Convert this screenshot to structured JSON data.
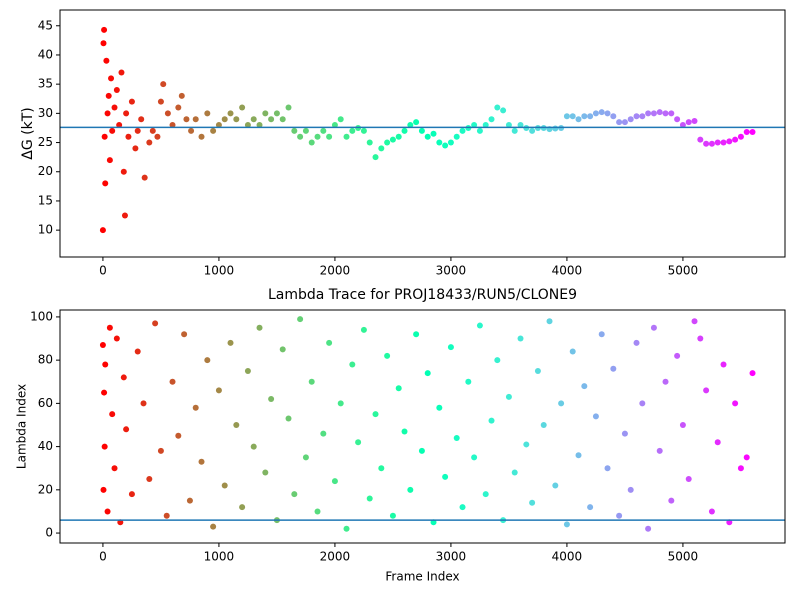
{
  "chart_data": [
    {
      "type": "scatter",
      "ylabel": "ΔG (kT)",
      "colormap": "rainbow_r",
      "x": [
        0,
        10,
        5,
        20,
        15,
        30,
        40,
        50,
        60,
        70,
        80,
        100,
        120,
        140,
        160,
        180,
        190,
        200,
        220,
        250,
        280,
        300,
        330,
        360,
        400,
        430,
        470,
        500,
        520,
        560,
        600,
        650,
        680,
        720,
        760,
        800,
        850,
        900,
        950,
        1000,
        1050,
        1100,
        1150,
        1200,
        1250,
        1300,
        1350,
        1400,
        1450,
        1500,
        1550,
        1600,
        1650,
        1700,
        1750,
        1800,
        1850,
        1900,
        1950,
        2000,
        2050,
        2100,
        2150,
        2200,
        2250,
        2300,
        2350,
        2400,
        2450,
        2500,
        2550,
        2600,
        2650,
        2700,
        2750,
        2800,
        2850,
        2900,
        2950,
        3000,
        3050,
        3100,
        3150,
        3200,
        3250,
        3300,
        3350,
        3400,
        3450,
        3500,
        3550,
        3600,
        3650,
        3700,
        3750,
        3800,
        3850,
        3900,
        3950,
        4000,
        4050,
        4100,
        4150,
        4200,
        4250,
        4300,
        4350,
        4400,
        4450,
        4500,
        4550,
        4600,
        4650,
        4700,
        4750,
        4800,
        4850,
        4900,
        4950,
        5000,
        5050,
        5100,
        5150,
        5200,
        5250,
        5300,
        5350,
        5400,
        5450,
        5500,
        5550,
        5600
      ],
      "values": [
        10,
        44.3,
        42,
        18,
        26,
        39,
        30,
        33,
        22,
        36,
        27,
        31,
        34,
        28,
        37,
        20,
        12.5,
        30,
        26,
        32,
        24,
        27,
        29,
        19,
        25,
        27,
        26,
        32,
        35,
        30,
        28,
        31,
        33,
        29,
        27,
        29,
        26,
        30,
        27,
        28,
        29,
        30,
        29,
        31,
        28,
        29,
        28,
        30,
        29,
        30,
        29,
        31,
        27,
        26,
        27,
        25,
        26,
        27,
        26,
        28,
        29,
        26,
        27,
        27.5,
        27,
        25,
        22.5,
        24,
        25,
        25.5,
        26,
        27,
        28,
        28.5,
        27,
        26,
        26.5,
        25,
        24.5,
        25,
        26,
        27,
        27.5,
        28,
        27,
        28,
        29,
        31,
        30.5,
        28,
        27,
        28,
        27.5,
        27,
        27.5,
        27.5,
        27.3,
        27.4,
        27.5,
        29.5,
        29.5,
        29,
        29.5,
        29.5,
        30,
        30.2,
        30,
        29.5,
        28.5,
        28.5,
        29,
        29.5,
        29.5,
        30,
        30,
        30.2,
        30,
        30,
        29,
        28,
        28.5,
        28.7,
        25.5,
        24.8,
        24.8,
        25,
        25,
        25.2,
        25.5,
        26,
        26.8,
        26.8
      ],
      "hline": 27.6,
      "hline_color": "#1f77b4",
      "xlim": [
        -370,
        5880
      ],
      "xticks": [
        0,
        1000,
        2000,
        3000,
        4000,
        5000
      ],
      "ylim": [
        5.4,
        47.7
      ],
      "yticks": [
        10,
        15,
        20,
        25,
        30,
        35,
        40,
        45
      ]
    },
    {
      "type": "scatter",
      "title": "Lambda Trace for PROJ18433/RUN5/CLONE9",
      "xlabel": "Frame Index",
      "ylabel": "Lambda Index",
      "colormap": "rainbow_r",
      "x": [
        0,
        5,
        10,
        15,
        20,
        40,
        60,
        80,
        100,
        120,
        150,
        180,
        200,
        250,
        300,
        350,
        400,
        450,
        500,
        550,
        600,
        650,
        700,
        750,
        800,
        850,
        900,
        950,
        1000,
        1050,
        1100,
        1150,
        1200,
        1250,
        1300,
        1350,
        1400,
        1450,
        1500,
        1550,
        1600,
        1650,
        1700,
        1750,
        1800,
        1850,
        1900,
        1950,
        2000,
        2050,
        2100,
        2150,
        2200,
        2250,
        2300,
        2350,
        2400,
        2450,
        2500,
        2550,
        2600,
        2650,
        2700,
        2750,
        2800,
        2850,
        2900,
        2950,
        3000,
        3050,
        3100,
        3150,
        3200,
        3250,
        3300,
        3350,
        3400,
        3450,
        3500,
        3550,
        3600,
        3650,
        3700,
        3750,
        3800,
        3850,
        3900,
        3950,
        4000,
        4050,
        4100,
        4150,
        4200,
        4250,
        4300,
        4350,
        4400,
        4450,
        4500,
        4550,
        4600,
        4650,
        4700,
        4750,
        4800,
        4850,
        4900,
        4950,
        5000,
        5050,
        5100,
        5150,
        5200,
        5250,
        5300,
        5350,
        5400,
        5450,
        5500,
        5550,
        5600
      ],
      "values": [
        87,
        20,
        65,
        40,
        78,
        10,
        95,
        55,
        30,
        90,
        5,
        72,
        48,
        18,
        84,
        60,
        25,
        97,
        38,
        8,
        70,
        45,
        92,
        15,
        58,
        33,
        80,
        3,
        66,
        22,
        88,
        50,
        12,
        75,
        40,
        95,
        28,
        62,
        6,
        85,
        53,
        18,
        99,
        35,
        70,
        10,
        46,
        88,
        24,
        60,
        2,
        78,
        42,
        94,
        16,
        55,
        30,
        82,
        8,
        67,
        47,
        20,
        92,
        38,
        74,
        5,
        58,
        26,
        86,
        44,
        12,
        70,
        35,
        96,
        18,
        52,
        80,
        6,
        63,
        28,
        90,
        41,
        14,
        75,
        50,
        98,
        22,
        60,
        4,
        84,
        36,
        68,
        12,
        54,
        92,
        30,
        76,
        8,
        46,
        20,
        88,
        60,
        2,
        95,
        38,
        70,
        15,
        82,
        50,
        25,
        98,
        90,
        66,
        10,
        42,
        78,
        5,
        60,
        30,
        35,
        74
      ],
      "hline": 6,
      "hline_color": "#1f77b4",
      "xlim": [
        -370,
        5880
      ],
      "xticks": [
        0,
        1000,
        2000,
        3000,
        4000,
        5000
      ],
      "ylim": [
        -4.6,
        103.2
      ],
      "yticks": [
        0,
        20,
        40,
        60,
        80,
        100
      ]
    }
  ]
}
